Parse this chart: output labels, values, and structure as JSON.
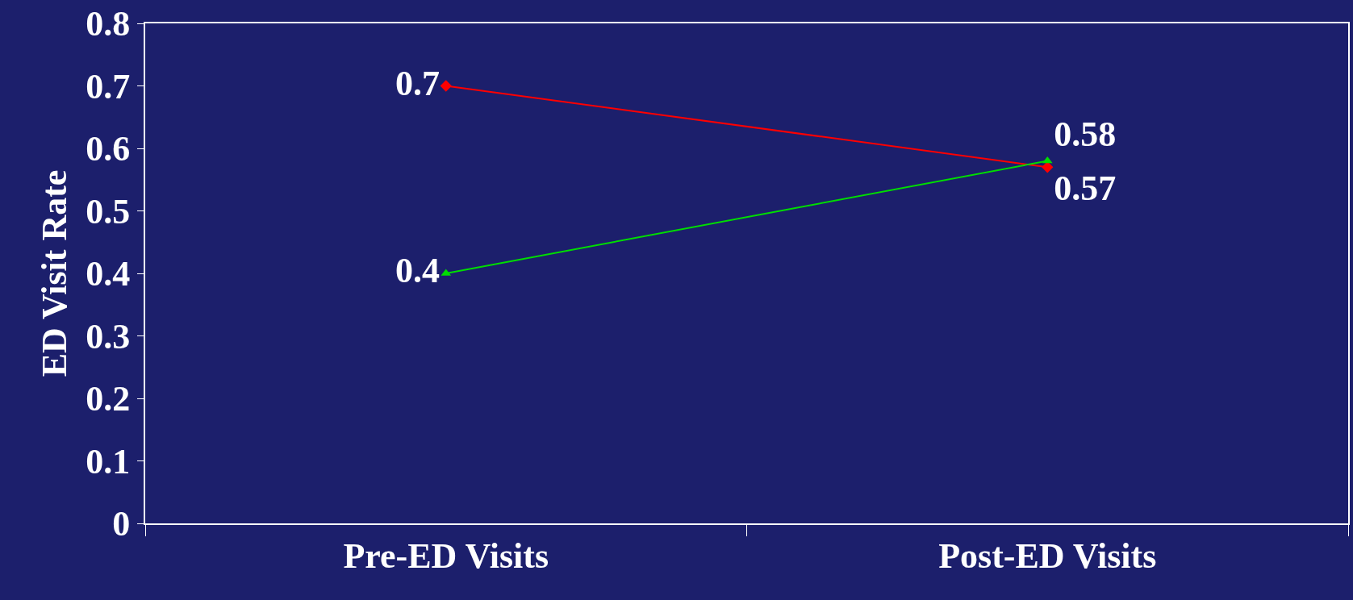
{
  "chart_data": {
    "type": "line",
    "ylabel": "ED Visit Rate",
    "categories": [
      "Pre-ED Visits",
      "Post-ED Visits"
    ],
    "series": [
      {
        "color": "#ff0000",
        "values": [
          0.7,
          0.57
        ],
        "marker": "diamond"
      },
      {
        "color": "#00dd00",
        "values": [
          0.4,
          0.58
        ],
        "marker": "triangle"
      }
    ],
    "ylim": [
      0,
      0.8
    ],
    "yticks": [
      0,
      0.1,
      0.2,
      0.3,
      0.4,
      0.5,
      0.6,
      0.7,
      0.8
    ],
    "data_labels": true
  }
}
